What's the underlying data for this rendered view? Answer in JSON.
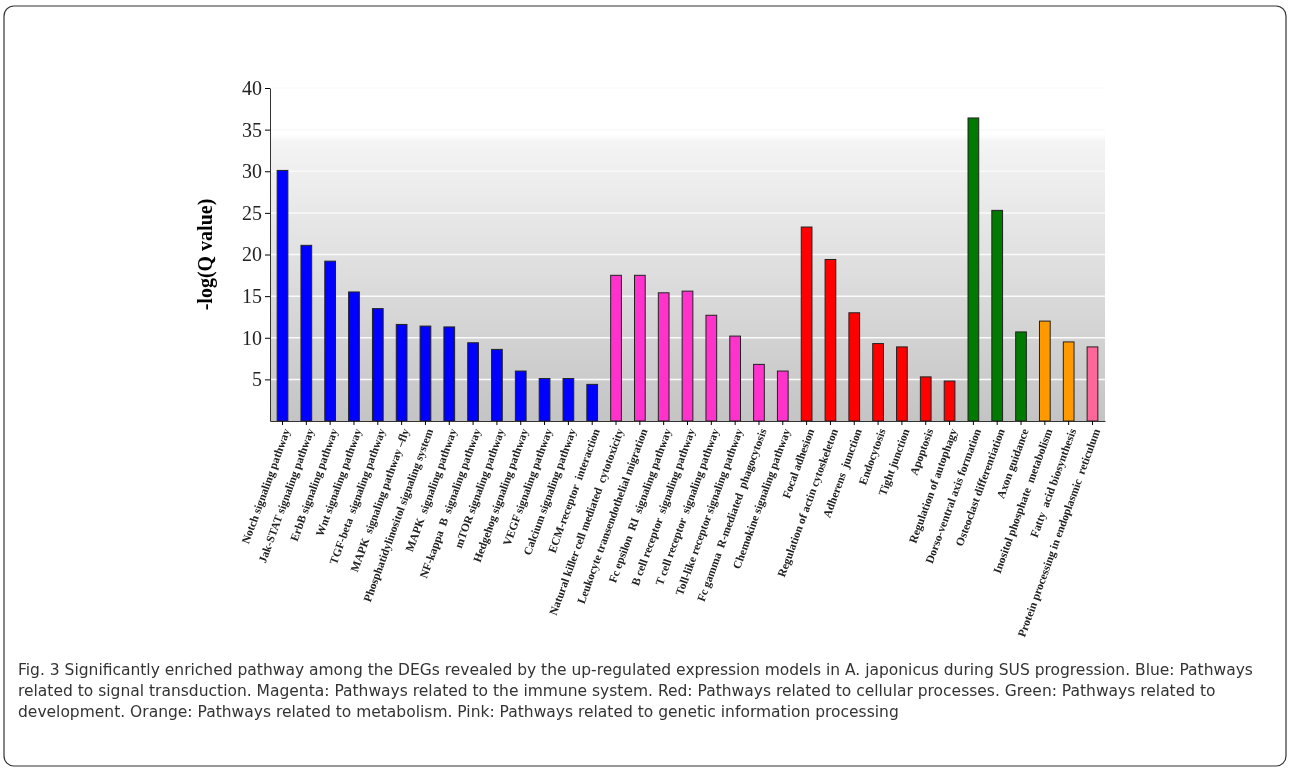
{
  "chart_data": {
    "type": "bar",
    "ylabel": "-log(Q value)",
    "categories": [
      "Notch signaling pathway",
      "Jak-STAT signaling pathway",
      "ErbB signaling pathway",
      "Wnt signaling pathway",
      "TGF-beta  signaling pathway",
      "MAPK  signaling pathway –fly",
      "Phosphatidylinositol signaling system",
      "MAPK  signaling pathway",
      "NF-kappa  B  signaling pathway",
      "mTOR signaling pathway",
      "Hedgehog signaling pathway",
      "VEGF signaling pathway",
      "Calcium signaling pathway",
      "ECM-receptor  interaction",
      "Natural killer cell mediated  cytotoxicity",
      "Leukocyte transendothelial migration",
      "Fc epsilon  RI  signaling pathway",
      "B cell receptor  signaling pathway",
      "T cell receptor  signaling pathway",
      "Toll-like receptor signaling pathway",
      "Fc gamma  R-mediated  phagocytosis",
      "Chemokine signaling pathway",
      "Focal adhesion",
      "Regulation of actin cytoskeleton",
      "Adherens  junction",
      "Endocytosis",
      "Tight junction",
      "Apoptosis",
      "Regulation of autophagy",
      "Dorso-ventral axis formation",
      "Osteoclast differentiation",
      "Axon guidance",
      "Inositol phosphate  metabolism",
      "Fatty  acid biosynthesis",
      "Protein processing in endoplasmic  reticulum"
    ],
    "values": [
      30.1,
      21.1,
      19.2,
      15.5,
      13.5,
      11.6,
      11.4,
      11.3,
      9.4,
      8.6,
      6.0,
      5.1,
      5.1,
      4.4,
      17.5,
      17.5,
      15.4,
      15.6,
      12.7,
      10.2,
      6.8,
      6.0,
      23.3,
      19.4,
      13.0,
      9.3,
      8.9,
      5.3,
      4.8,
      36.4,
      25.3,
      10.7,
      12.0,
      9.5,
      8.9
    ],
    "colors": [
      "#0000ff",
      "#0000ff",
      "#0000ff",
      "#0000ff",
      "#0000ff",
      "#0000ff",
      "#0000ff",
      "#0000ff",
      "#0000ff",
      "#0000ff",
      "#0000ff",
      "#0000ff",
      "#0000ff",
      "#0000ff",
      "#ff33cc",
      "#ff33cc",
      "#ff33cc",
      "#ff33cc",
      "#ff33cc",
      "#ff33cc",
      "#ff33cc",
      "#ff33cc",
      "#ff0000",
      "#ff0000",
      "#ff0000",
      "#ff0000",
      "#ff0000",
      "#ff0000",
      "#ff0000",
      "#007a00",
      "#007a00",
      "#007a00",
      "#ff9900",
      "#ff9900",
      "#ff6699"
    ],
    "ylim": [
      0,
      40
    ],
    "yticks": [
      5,
      10,
      15,
      20,
      25,
      30,
      35,
      40
    ],
    "grid": "y",
    "annotations": [
      "Fig. 3 Significantly enriched pathway among the DEGs revealed by the up-regulated expression models in A. japonicus during SUS progression. Blue: Pathways related to signal transduction. Magenta: Pathways related to the immune system. Red: Pathways related to cellular processes. Green: Pathways related to development. Orange: Pathways related to metabolism. Pink: Pathways related to genetic information processing"
    ]
  }
}
